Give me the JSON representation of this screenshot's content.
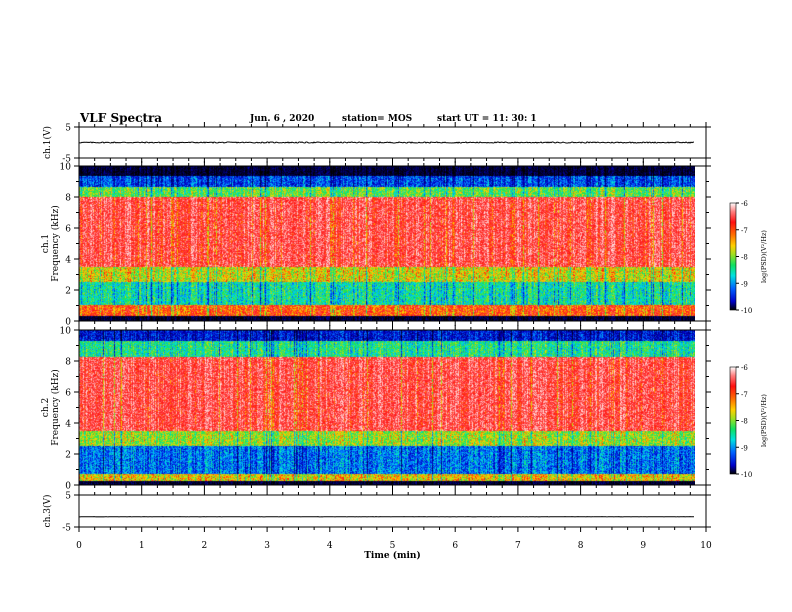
{
  "header": {
    "title": "VLF Spectra",
    "date": "Jun. 6 , 2020",
    "station": "station= MOS",
    "start_ut": "start UT =  11: 30: 1"
  },
  "chart_data": [
    {
      "type": "line",
      "panel": "ch1-waveform",
      "ylabel": "ch.1(V)",
      "ylim": [
        -5,
        5
      ],
      "y_ticks": [
        "5",
        "-5"
      ],
      "series": [
        {
          "values_level": 0.0
        }
      ],
      "line_color": "#000000"
    },
    {
      "type": "heatmap",
      "panel": "ch1-spectrogram",
      "ylabel_top": "ch.1",
      "ylabel": "Frequency (kHz)",
      "ylim": [
        0,
        10
      ],
      "y_ticks": [
        "0",
        "2",
        "4",
        "6",
        "8",
        "10"
      ],
      "colorbar": {
        "label": "log(PSD)(V²/Hz)",
        "range": [
          -10,
          -6
        ],
        "ticks": [
          "-6",
          "-7",
          "-8",
          "-9",
          "-10"
        ]
      },
      "bands_khz": [
        {
          "from": 9.4,
          "to": 10.0,
          "level": -10.5
        },
        {
          "from": 8.7,
          "to": 9.4,
          "level": -9.2
        },
        {
          "from": 8.0,
          "to": 8.7,
          "level": -8.0
        },
        {
          "from": 3.5,
          "to": 8.0,
          "level": -6.5
        },
        {
          "from": 2.5,
          "to": 3.5,
          "level": -7.6
        },
        {
          "from": 1.0,
          "to": 2.5,
          "level": -8.4
        },
        {
          "from": 0.3,
          "to": 1.0,
          "level": -7.0
        },
        {
          "from": 0.0,
          "to": 0.3,
          "level": -10.5
        }
      ]
    },
    {
      "type": "heatmap",
      "panel": "ch2-spectrogram",
      "ylabel_top": "ch.2",
      "ylabel": "Frequency (kHz)",
      "ylim": [
        0,
        10
      ],
      "y_ticks": [
        "0",
        "2",
        "4",
        "6",
        "8",
        "10"
      ],
      "colorbar": {
        "label": "log(PSD)(V²/Hz)",
        "range": [
          -10,
          -6
        ],
        "ticks": [
          "-6",
          "-7",
          "-8",
          "-9",
          "-10"
        ]
      },
      "bands_khz": [
        {
          "from": 9.3,
          "to": 10.0,
          "level": -9.5
        },
        {
          "from": 8.3,
          "to": 9.3,
          "level": -8.3
        },
        {
          "from": 3.5,
          "to": 8.3,
          "level": -6.5
        },
        {
          "from": 2.5,
          "to": 3.5,
          "level": -7.8
        },
        {
          "from": 0.7,
          "to": 2.5,
          "level": -9.0
        },
        {
          "from": 0.2,
          "to": 0.7,
          "level": -7.5
        },
        {
          "from": 0.0,
          "to": 0.2,
          "level": -10.5
        }
      ]
    },
    {
      "type": "line",
      "panel": "ch3-waveform",
      "ylabel": "ch.3(V)",
      "ylim": [
        -5,
        5
      ],
      "y_ticks": [
        "5",
        "-5"
      ],
      "series": [
        {
          "values_level": -1.8
        }
      ],
      "line_color": "#000000"
    }
  ],
  "x_axis": {
    "label": "Time (min)",
    "range": [
      0,
      10
    ],
    "data_end": 9.82,
    "ticks": [
      "0",
      "1",
      "2",
      "3",
      "4",
      "5",
      "6",
      "7",
      "8",
      "9",
      "10"
    ]
  },
  "colors": {
    "scale": [
      "#000000",
      "#0000c8",
      "#00a0ff",
      "#00e8e0",
      "#10e060",
      "#90e020",
      "#ffd000",
      "#ff7000",
      "#ff1010",
      "#ff4040",
      "#ffffff"
    ]
  }
}
